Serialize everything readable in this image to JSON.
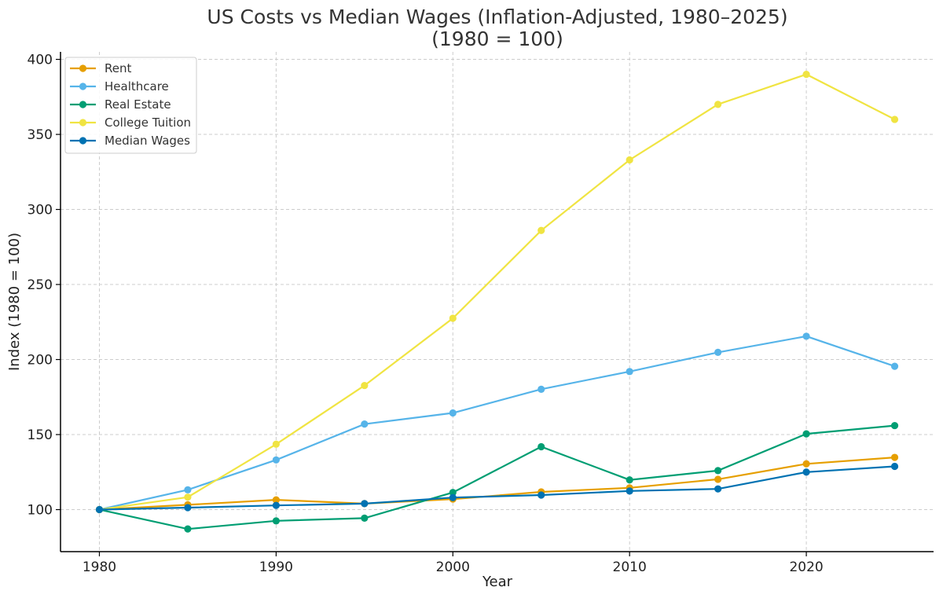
{
  "chart_data": {
    "type": "line",
    "title": "US Costs vs Median Wages (Inflation-Adjusted, 1980–2025)",
    "subtitle": "(1980 = 100)",
    "xlabel": "Year",
    "ylabel": "Index (1980 = 100)",
    "x": [
      1980,
      1985,
      1990,
      1995,
      2000,
      2005,
      2010,
      2015,
      2020,
      2025
    ],
    "xlim": [
      1977.8,
      1927.2
    ],
    "ylim": [
      72,
      405
    ],
    "x_ticks": [
      1980,
      1990,
      2000,
      2010,
      2020
    ],
    "y_ticks": [
      100,
      150,
      200,
      250,
      300,
      350,
      400
    ],
    "grid": true,
    "legend_position": "top-left",
    "series": [
      {
        "name": "Rent",
        "color": "#E69F00",
        "values": [
          100,
          103.2,
          106.5,
          104,
          107,
          111.8,
          114.5,
          120.2,
          130.5,
          134.8
        ]
      },
      {
        "name": "Healthcare",
        "color": "#56B4E9",
        "values": [
          100,
          113.2,
          133.1,
          157,
          164.4,
          180.2,
          192,
          204.8,
          215.5,
          195.5
        ]
      },
      {
        "name": "Real Estate",
        "color": "#009E73",
        "values": [
          100,
          87.1,
          92.5,
          94.3,
          111.4,
          141.9,
          119.8,
          126,
          150.5,
          156
        ]
      },
      {
        "name": "College Tuition",
        "color": "#F0E442",
        "values": [
          100,
          108.3,
          143.6,
          182.7,
          227.5,
          286,
          333,
          370,
          390,
          360
        ]
      },
      {
        "name": "Median Wages",
        "color": "#0072B2",
        "values": [
          100,
          101.3,
          102.8,
          104,
          108,
          109.7,
          112.4,
          113.8,
          125,
          128.8
        ]
      }
    ]
  }
}
